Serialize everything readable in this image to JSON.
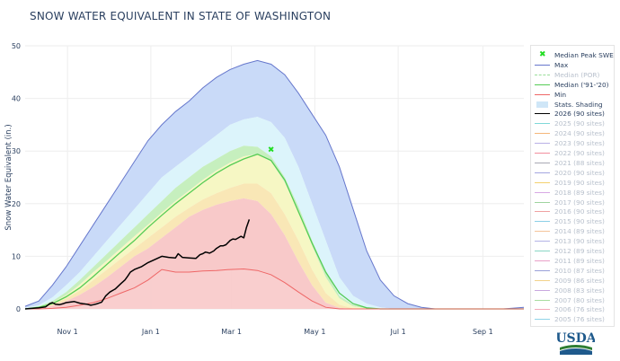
{
  "chart_data": {
    "type": "area",
    "title": "SNOW WATER EQUIVALENT IN STATE OF WASHINGTON",
    "ylabel": "Snow Water Equivalent (in.)",
    "xlabel": "",
    "ylim": [
      0,
      50
    ],
    "yticks": [
      0,
      10,
      20,
      30,
      40,
      50
    ],
    "xlim_days": [
      0,
      365
    ],
    "xticks": [
      {
        "label": "Nov 1",
        "day": 31
      },
      {
        "label": "Jan 1",
        "day": 92
      },
      {
        "label": "Mar 1",
        "day": 151
      },
      {
        "label": "May 1",
        "day": 212
      },
      {
        "label": "Jul 1",
        "day": 273
      },
      {
        "label": "Sep 1",
        "day": 335
      }
    ],
    "grid": true,
    "legend_position": "right",
    "x_days": [
      0,
      10,
      20,
      30,
      40,
      50,
      60,
      70,
      80,
      90,
      100,
      110,
      120,
      130,
      140,
      150,
      160,
      170,
      180,
      190,
      200,
      210,
      220,
      230,
      240,
      250,
      260,
      270,
      280,
      290,
      300,
      310,
      320,
      330,
      340,
      350,
      365
    ],
    "bands": {
      "max": [
        0.5,
        1.5,
        4.5,
        8,
        12,
        16,
        20,
        24,
        28,
        32,
        35,
        37.5,
        39.5,
        42,
        44,
        45.5,
        46.5,
        47.2,
        46.5,
        44.5,
        41,
        37,
        33,
        27,
        19,
        11,
        5.5,
        2.5,
        1,
        0.3,
        0,
        0,
        0,
        0,
        0,
        0,
        0.3
      ],
      "p90": [
        0.2,
        0.7,
        2.2,
        4.5,
        7,
        10,
        13,
        16,
        19,
        22,
        25,
        27,
        29,
        31,
        33,
        35,
        36,
        36.5,
        35.5,
        32.5,
        27,
        20,
        13,
        6,
        2.5,
        1,
        0.3,
        0,
        0,
        0,
        0,
        0,
        0,
        0,
        0,
        0,
        0
      ],
      "p70": [
        0.1,
        0.5,
        1.5,
        3.2,
        5.5,
        8,
        10.5,
        13,
        15.5,
        18,
        20.5,
        23,
        25,
        27,
        28.5,
        30,
        31,
        30.8,
        29,
        25,
        19.5,
        13,
        7,
        2.5,
        0.8,
        0.2,
        0,
        0,
        0,
        0,
        0,
        0,
        0,
        0,
        0,
        0,
        0
      ],
      "p50": [
        0,
        0.4,
        1.2,
        2.6,
        4.6,
        7,
        9.2,
        11.5,
        13.8,
        16,
        18.3,
        20.5,
        22.5,
        24.5,
        26.3,
        27.8,
        29,
        29.4,
        28,
        24,
        18.5,
        12,
        6,
        2,
        0.5,
        0.1,
        0,
        0,
        0,
        0,
        0,
        0,
        0,
        0,
        0,
        0,
        0
      ],
      "p30": [
        0,
        0.3,
        0.9,
        2,
        3.5,
        5.5,
        7.5,
        9.5,
        11.5,
        13.5,
        15.5,
        17.5,
        19.2,
        20.8,
        22,
        23,
        23.8,
        23.8,
        22,
        18,
        13,
        7.5,
        3,
        0.8,
        0.1,
        0,
        0,
        0,
        0,
        0,
        0,
        0,
        0,
        0,
        0,
        0,
        0
      ],
      "p10": [
        0,
        0.2,
        0.6,
        1.5,
        2.7,
        4.2,
        6,
        8,
        10,
        11.5,
        13.5,
        15.5,
        17.5,
        18.8,
        19.8,
        20.5,
        21,
        20.5,
        18,
        14,
        9,
        4.5,
        1.2,
        0.2,
        0,
        0,
        0,
        0,
        0,
        0,
        0,
        0,
        0,
        0,
        0,
        0,
        0
      ],
      "min": [
        0,
        0,
        0.1,
        0.3,
        0.7,
        1.2,
        2,
        3,
        4,
        5.5,
        7.5,
        7,
        7,
        7.2,
        7.3,
        7.5,
        7.6,
        7.3,
        6.5,
        5,
        3.2,
        1.5,
        0.3,
        0,
        0,
        0,
        0,
        0,
        0,
        0,
        0,
        0,
        0,
        0,
        0,
        0,
        0
      ],
      "median_91_20": [
        0,
        0.3,
        1,
        2.3,
        4,
        6.2,
        8.5,
        10.8,
        13,
        15.5,
        17.8,
        20,
        22,
        24,
        25.8,
        27.3,
        28.5,
        29.4,
        28.2,
        24.5,
        18.5,
        12.5,
        7,
        3,
        1,
        0.2,
        0,
        0,
        0,
        0,
        0,
        0,
        0,
        0,
        0,
        0,
        0
      ]
    },
    "median_peak": {
      "day": 180,
      "value": 30.3
    },
    "series": [
      {
        "name": "2026 (90 sites)",
        "x_days": [
          0,
          5,
          10,
          15,
          18,
          20,
          22,
          25,
          28,
          30,
          33,
          36,
          40,
          42,
          45,
          48,
          50,
          53,
          56,
          59,
          62,
          66,
          70,
          73,
          75,
          77,
          80,
          85,
          90,
          95,
          100,
          105,
          110,
          112,
          115,
          120,
          125,
          128,
          130,
          132,
          135,
          138,
          140,
          143,
          145,
          147,
          150,
          152,
          154,
          156,
          158,
          160,
          162,
          164
        ],
        "values": [
          0,
          0.1,
          0.2,
          0.4,
          1.0,
          1.2,
          0.9,
          0.8,
          1.0,
          1.2,
          1.3,
          1.4,
          1.1,
          1.0,
          0.9,
          0.7,
          0.8,
          1.0,
          1.3,
          2.5,
          3.2,
          3.8,
          4.8,
          5.5,
          6.2,
          7.0,
          7.5,
          8.0,
          8.8,
          9.4,
          10.0,
          9.8,
          9.7,
          10.5,
          9.8,
          9.7,
          9.6,
          10.3,
          10.5,
          10.8,
          10.6,
          11.0,
          11.5,
          12.0,
          12.0,
          12.2,
          13.0,
          13.3,
          13.2,
          13.5,
          13.8,
          13.5,
          15.5,
          17.0
        ]
      }
    ],
    "legend": [
      {
        "label": "Median Peak SWE",
        "kind": "marker",
        "color": "#22dd22",
        "dim": false
      },
      {
        "label": "Max",
        "kind": "line",
        "color": "#6677cc",
        "dim": false
      },
      {
        "label": "Median (POR)",
        "kind": "dash",
        "color": "#99dd99",
        "dim": true
      },
      {
        "label": "Median ('91-'20)",
        "kind": "line",
        "color": "#55cc55",
        "dim": false
      },
      {
        "label": "Min",
        "kind": "line",
        "color": "#ee6666",
        "dim": false
      },
      {
        "label": "Stats. Shading",
        "kind": "box",
        "color": "#cfe6f7",
        "dim": false
      },
      {
        "label": "2026 (90 sites)",
        "kind": "line",
        "color": "#000000",
        "dim": false
      },
      {
        "label": "2025 (90 sites)",
        "kind": "line",
        "color": "#7fd8d8",
        "dim": true
      },
      {
        "label": "2024 (90 sites)",
        "kind": "line",
        "color": "#f4b67a",
        "dim": true
      },
      {
        "label": "2023 (90 sites)",
        "kind": "line",
        "color": "#b9b0e6",
        "dim": true
      },
      {
        "label": "2022 (90 sites)",
        "kind": "line",
        "color": "#f28e9e",
        "dim": true
      },
      {
        "label": "2021 (88 sites)",
        "kind": "line",
        "color": "#a9a9b4",
        "dim": true
      },
      {
        "label": "2020 (90 sites)",
        "kind": "line",
        "color": "#a4a6e0",
        "dim": true
      },
      {
        "label": "2019 (90 sites)",
        "kind": "line",
        "color": "#f3d16e",
        "dim": true
      },
      {
        "label": "2018 (89 sites)",
        "kind": "line",
        "color": "#d8a9e4",
        "dim": true
      },
      {
        "label": "2017 (90 sites)",
        "kind": "line",
        "color": "#9fd49f",
        "dim": true
      },
      {
        "label": "2016 (90 sites)",
        "kind": "line",
        "color": "#f0a2a2",
        "dim": true
      },
      {
        "label": "2015 (90 sites)",
        "kind": "line",
        "color": "#8ccfe6",
        "dim": true
      },
      {
        "label": "2014 (89 sites)",
        "kind": "line",
        "color": "#f5c49a",
        "dim": true
      },
      {
        "label": "2013 (90 sites)",
        "kind": "line",
        "color": "#b3b3e6",
        "dim": true
      },
      {
        "label": "2012 (89 sites)",
        "kind": "line",
        "color": "#89d6c4",
        "dim": true
      },
      {
        "label": "2011 (89 sites)",
        "kind": "line",
        "color": "#e9a0c8",
        "dim": true
      },
      {
        "label": "2010 (87 sites)",
        "kind": "line",
        "color": "#9aa0d8",
        "dim": true
      },
      {
        "label": "2009 (86 sites)",
        "kind": "line",
        "color": "#f2d28a",
        "dim": true
      },
      {
        "label": "2008 (83 sites)",
        "kind": "line",
        "color": "#c9a7df",
        "dim": true
      },
      {
        "label": "2007 (80 sites)",
        "kind": "line",
        "color": "#a8dca0",
        "dim": true
      },
      {
        "label": "2006 (76 sites)",
        "kind": "line",
        "color": "#f3a8b8",
        "dim": true
      },
      {
        "label": "2005 (76 sites)",
        "kind": "line",
        "color": "#8fd3e8",
        "dim": true
      }
    ],
    "colors": {
      "max_line": "#6677cc",
      "band_max": "#c9daf8",
      "band_p90": "#dcf4fb",
      "band_p70": "#c6efbe",
      "band_p50": "#f6f7c4",
      "band_p30": "#f9e7b6",
      "band_p10": "#f8c9c9",
      "min_line": "#ee6666",
      "median_line": "#55cc55",
      "series_2026": "#000000",
      "axis_text": "#2a3f5f",
      "grid": "#eeeeee"
    }
  },
  "logo": {
    "text": "USDA",
    "color": "#1f5a8c"
  }
}
